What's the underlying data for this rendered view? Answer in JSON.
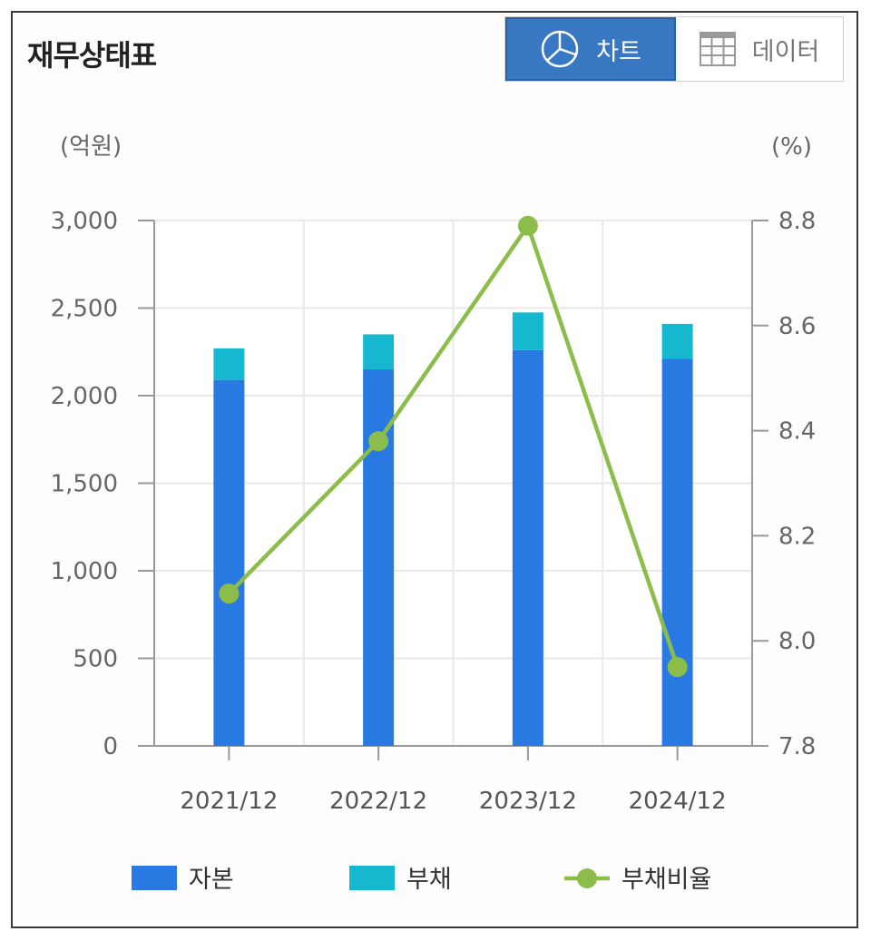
{
  "header": {
    "title": "재무상태표",
    "tabs": [
      {
        "label": "차트",
        "icon": "pie-chart-icon",
        "active": true
      },
      {
        "label": "데이터",
        "icon": "table-grid-icon",
        "active": false
      }
    ]
  },
  "colors": {
    "capital": "#2979e3",
    "debt": "#16b8cf",
    "ratio": "#8cbc4a",
    "active_tab": "#3877c2"
  },
  "chart_data": {
    "type": "bar",
    "stacked": true,
    "categories": [
      "2021/12",
      "2022/12",
      "2023/12",
      "2024/12"
    ],
    "series": [
      {
        "name": "자본",
        "type": "bar",
        "axis": "left",
        "values": [
          2090,
          2150,
          2260,
          2210
        ]
      },
      {
        "name": "부채",
        "type": "bar",
        "axis": "left",
        "values": [
          180,
          200,
          215,
          200
        ]
      },
      {
        "name": "부채비율",
        "type": "line",
        "axis": "right",
        "values": [
          8.09,
          8.38,
          8.79,
          7.95
        ]
      }
    ],
    "left_unit": "(억원)",
    "right_unit": "(%)",
    "ylim": [
      0,
      3000
    ],
    "y_ticks": [
      "0",
      "500",
      "1,000",
      "1,500",
      "2,000",
      "2,500",
      "3,000"
    ],
    "y2lim": [
      7.8,
      8.8
    ],
    "y2_ticks": [
      "7.8",
      "8.0",
      "8.2",
      "8.4",
      "8.6",
      "8.8"
    ],
    "grid": true,
    "legend_position": "bottom"
  }
}
